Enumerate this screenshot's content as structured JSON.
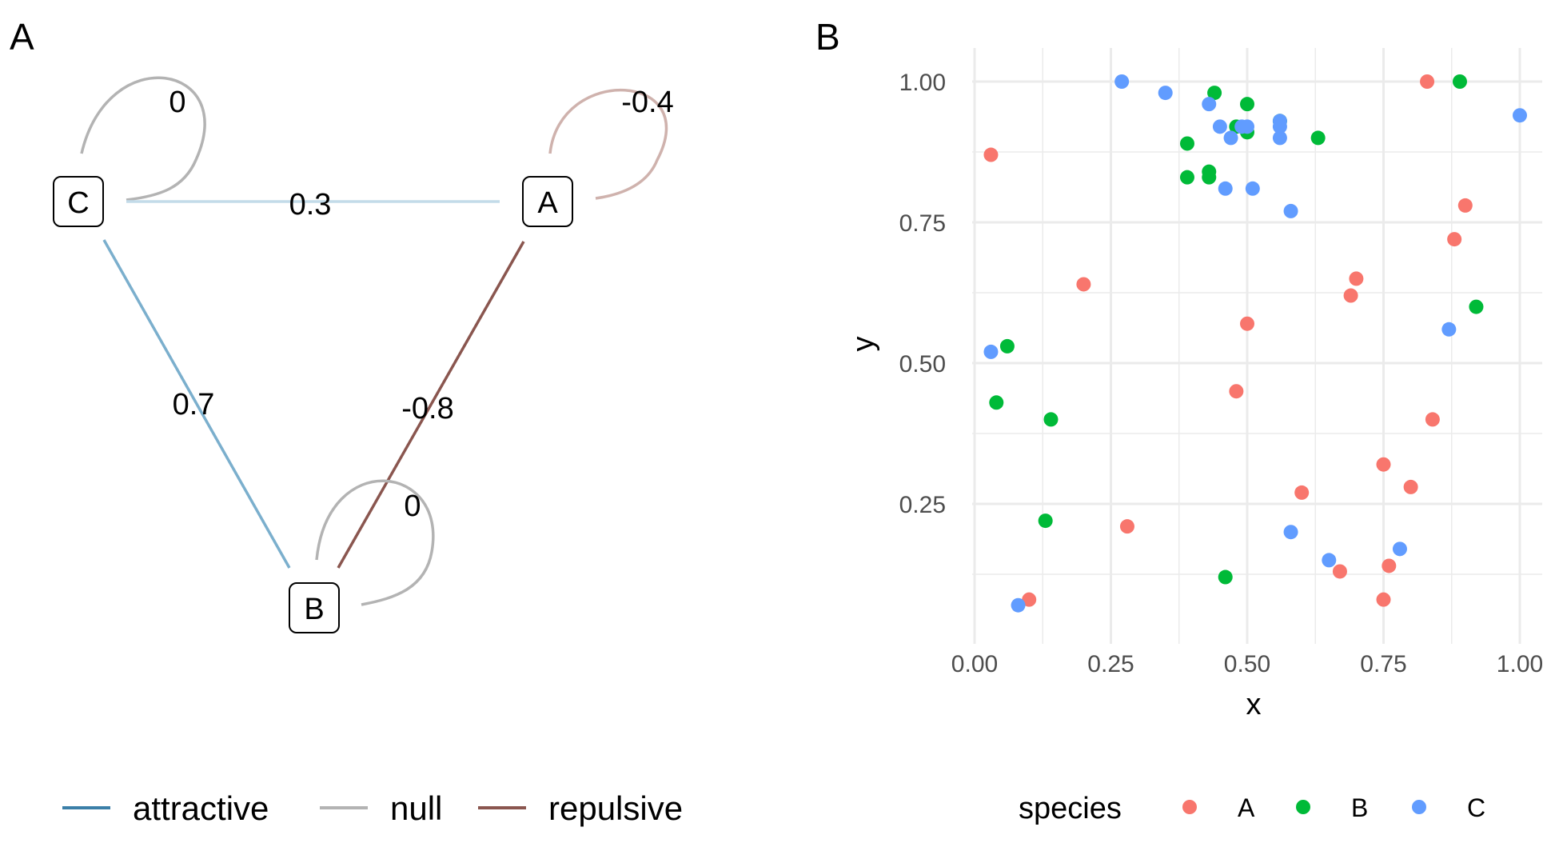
{
  "panel_a": {
    "letter": "A",
    "nodes": [
      {
        "id": "C",
        "label": "C"
      },
      {
        "id": "A",
        "label": "A"
      },
      {
        "id": "B",
        "label": "B"
      }
    ],
    "edges": [
      {
        "from": "C",
        "to": "C",
        "weight": 0,
        "label": "0",
        "type": "null"
      },
      {
        "from": "A",
        "to": "A",
        "weight": -0.4,
        "label": "-0.4",
        "type": "repulsive"
      },
      {
        "from": "C",
        "to": "A",
        "weight": 0.3,
        "label": "0.3",
        "type": "attractive"
      },
      {
        "from": "C",
        "to": "B",
        "weight": 0.7,
        "label": "0.7",
        "type": "attractive"
      },
      {
        "from": "A",
        "to": "B",
        "weight": -0.8,
        "label": "-0.8",
        "type": "repulsive"
      },
      {
        "from": "B",
        "to": "B",
        "weight": 0,
        "label": "0",
        "type": "null"
      }
    ],
    "legend": [
      {
        "label": "attractive",
        "color": "#3b7fa8"
      },
      {
        "label": "null",
        "color": "#b3b3b3"
      },
      {
        "label": "repulsive",
        "color": "#8a564f"
      }
    ]
  },
  "panel_b": {
    "letter": "B"
  },
  "chart_data": {
    "type": "scatter",
    "title": "",
    "xlabel": "x",
    "ylabel": "y",
    "xlim": [
      0,
      1
    ],
    "ylim": [
      0.05,
      1.03
    ],
    "x_ticks": [
      "0.00",
      "0.25",
      "0.50",
      "0.75",
      "1.00"
    ],
    "y_ticks": [
      "0.25",
      "0.50",
      "0.75",
      "1.00"
    ],
    "grid": true,
    "legend_title": "species",
    "legend_position": "bottom",
    "series": [
      {
        "name": "A",
        "color": "#f8766d",
        "points": [
          [
            0.83,
            1.0
          ],
          [
            0.03,
            0.87
          ],
          [
            0.9,
            0.78
          ],
          [
            0.88,
            0.72
          ],
          [
            0.7,
            0.65
          ],
          [
            0.69,
            0.62
          ],
          [
            0.2,
            0.64
          ],
          [
            0.5,
            0.57
          ],
          [
            0.48,
            0.45
          ],
          [
            0.84,
            0.4
          ],
          [
            0.75,
            0.32
          ],
          [
            0.8,
            0.28
          ],
          [
            0.6,
            0.27
          ],
          [
            0.28,
            0.21
          ],
          [
            0.76,
            0.14
          ],
          [
            0.67,
            0.13
          ],
          [
            0.75,
            0.08
          ],
          [
            0.1,
            0.08
          ]
        ]
      },
      {
        "name": "B",
        "color": "#00ba38",
        "points": [
          [
            0.89,
            1.0
          ],
          [
            0.44,
            0.98
          ],
          [
            0.5,
            0.96
          ],
          [
            0.48,
            0.92
          ],
          [
            0.56,
            0.93
          ],
          [
            0.5,
            0.91
          ],
          [
            0.39,
            0.89
          ],
          [
            0.63,
            0.9
          ],
          [
            0.39,
            0.83
          ],
          [
            0.43,
            0.84
          ],
          [
            0.43,
            0.83
          ],
          [
            0.92,
            0.6
          ],
          [
            0.06,
            0.53
          ],
          [
            0.04,
            0.43
          ],
          [
            0.14,
            0.4
          ],
          [
            0.13,
            0.22
          ],
          [
            0.46,
            0.12
          ]
        ]
      },
      {
        "name": "C",
        "color": "#619cff",
        "points": [
          [
            0.27,
            1.0
          ],
          [
            0.35,
            0.98
          ],
          [
            0.43,
            0.96
          ],
          [
            0.45,
            0.92
          ],
          [
            0.47,
            0.9
          ],
          [
            0.49,
            0.92
          ],
          [
            0.5,
            0.92
          ],
          [
            0.56,
            0.93
          ],
          [
            0.56,
            0.92
          ],
          [
            0.56,
            0.9
          ],
          [
            0.46,
            0.81
          ],
          [
            0.51,
            0.81
          ],
          [
            0.58,
            0.77
          ],
          [
            1.0,
            0.94
          ],
          [
            0.87,
            0.56
          ],
          [
            0.03,
            0.52
          ],
          [
            0.58,
            0.2
          ],
          [
            0.65,
            0.15
          ],
          [
            0.78,
            0.17
          ],
          [
            0.08,
            0.07
          ]
        ]
      }
    ]
  }
}
